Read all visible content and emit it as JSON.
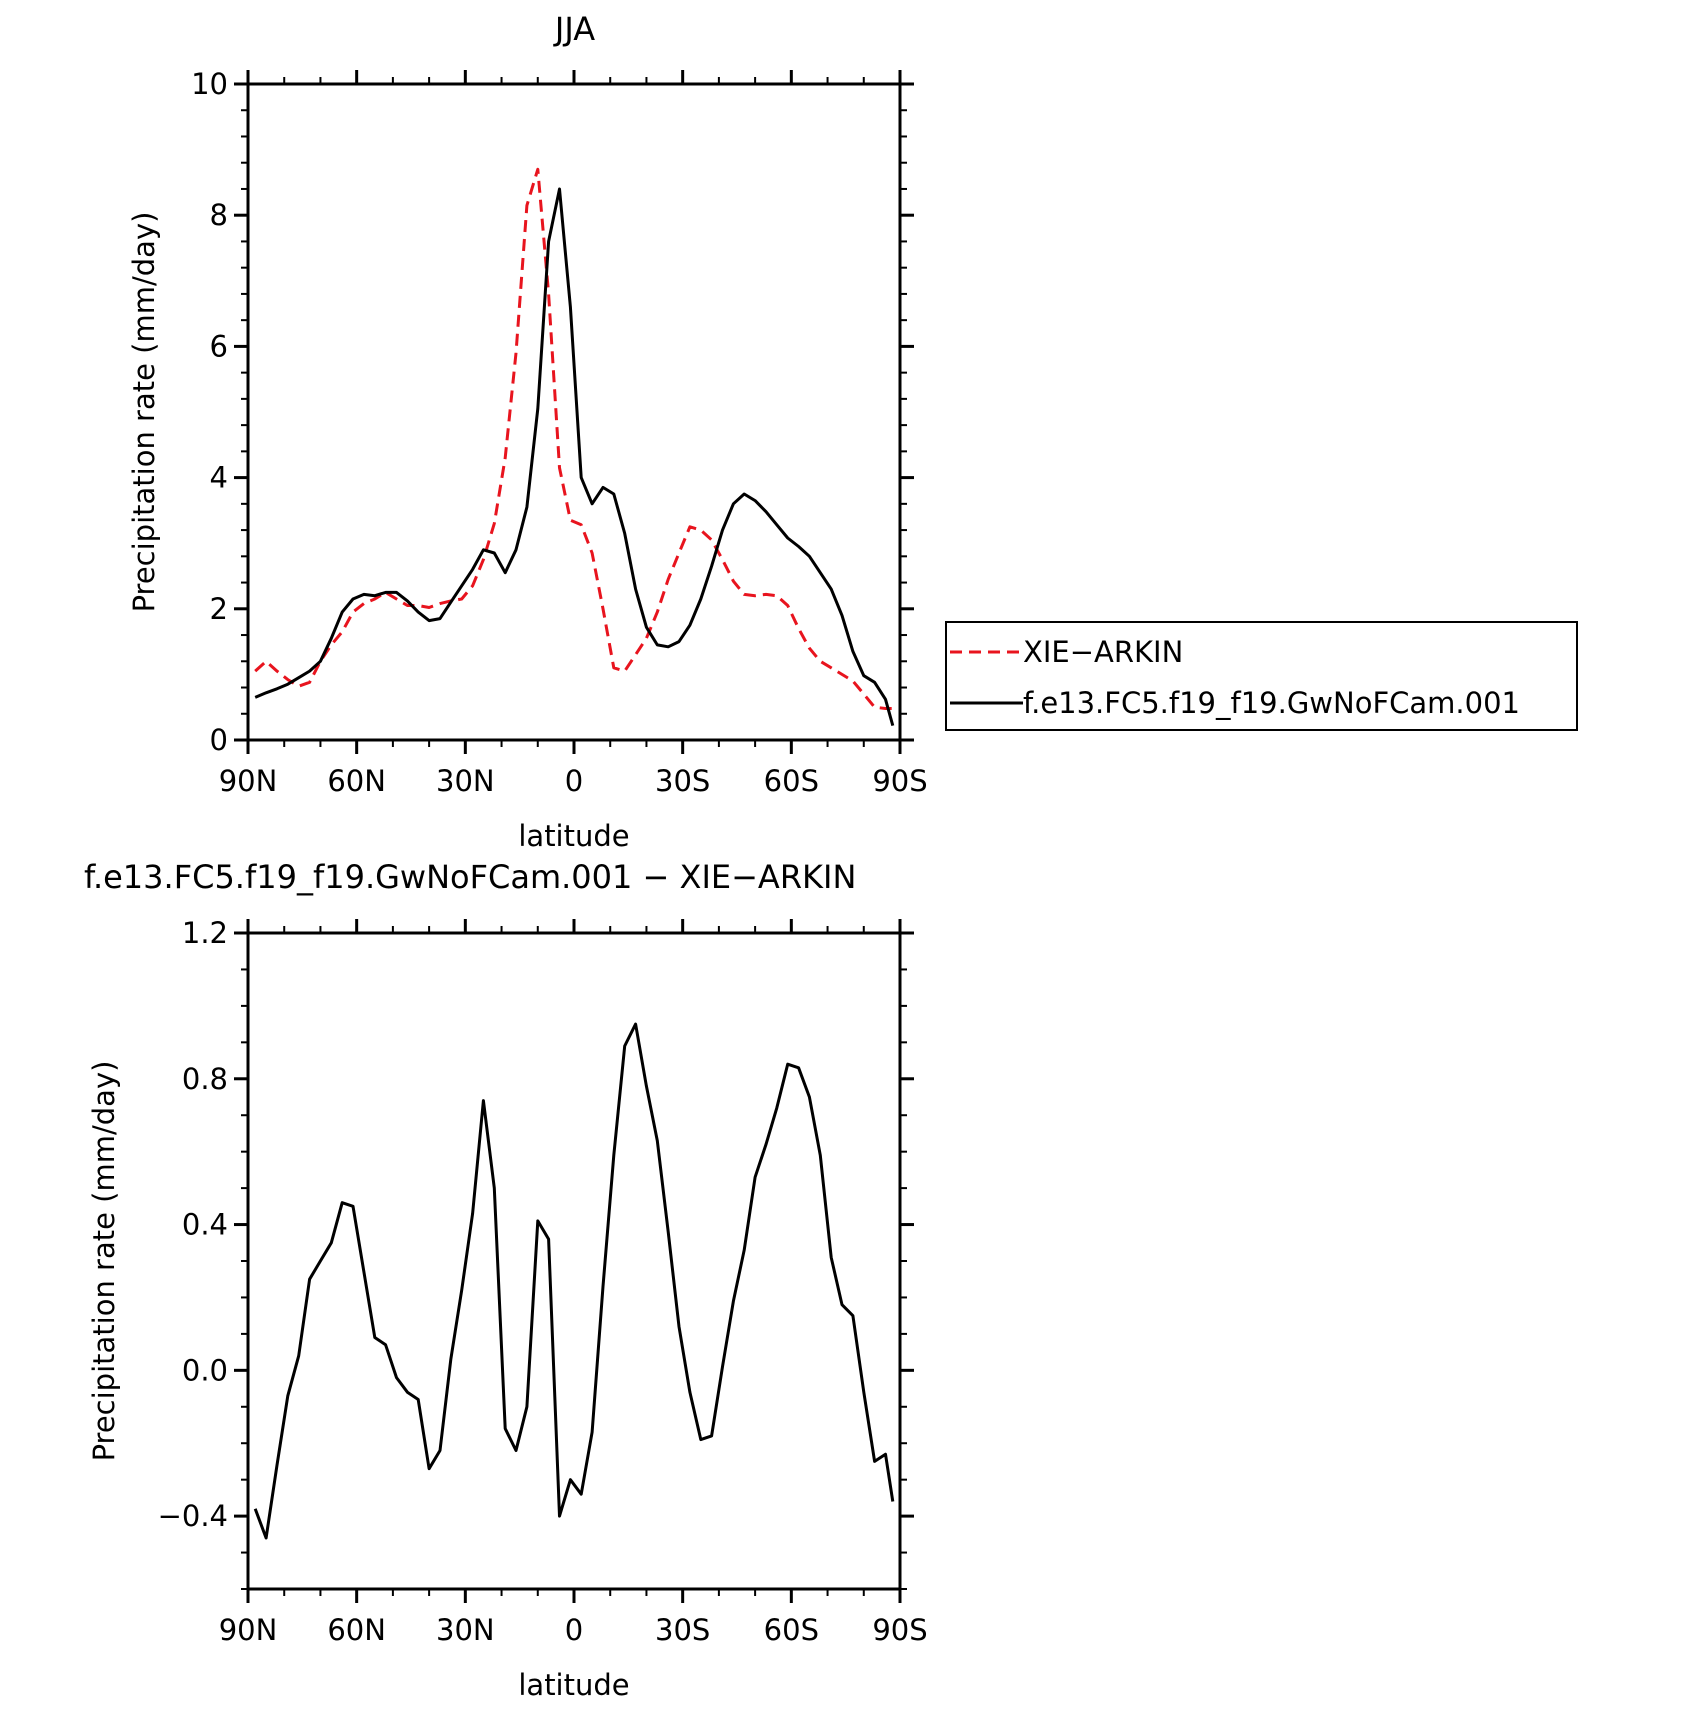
{
  "chart_data": [
    {
      "type": "line",
      "title": "JJA",
      "xlabel": "latitude",
      "ylabel": "Precipitation rate (mm/day)",
      "xlim": [
        90,
        -90
      ],
      "ylim": [
        0,
        10
      ],
      "x_ticks": [
        90,
        60,
        30,
        0,
        -30,
        -60,
        -90
      ],
      "x_tick_labels": [
        "90N",
        "60N",
        "30N",
        "0",
        "30S",
        "60S",
        "90S"
      ],
      "y_ticks": [
        0,
        2,
        4,
        6,
        8,
        10
      ],
      "y_tick_labels": [
        "0",
        "2",
        "4",
        "6",
        "8",
        "10"
      ],
      "grid": false,
      "legend_position": "right",
      "series": [
        {
          "name": "XIE−ARKIN",
          "color": "#e8141e",
          "dash": "dashed",
          "x": [
            88,
            85,
            82,
            79,
            76,
            73,
            70,
            67,
            64,
            61,
            58,
            55,
            52,
            49,
            46,
            43,
            40,
            37,
            34,
            31,
            28,
            25,
            22,
            19,
            16,
            13,
            10,
            7,
            4,
            1,
            -2,
            -5,
            -8,
            -11,
            -14,
            -17,
            -20,
            -23,
            -26,
            -29,
            -32,
            -35,
            -38,
            -41,
            -44,
            -47,
            -50,
            -53,
            -56,
            -59,
            -62,
            -65,
            -68,
            -71,
            -74,
            -77,
            -80,
            -83,
            -86,
            -88
          ],
          "y": [
            1.05,
            1.2,
            1.05,
            0.92,
            0.82,
            0.88,
            1.2,
            1.45,
            1.65,
            1.95,
            2.08,
            2.15,
            2.25,
            2.15,
            2.05,
            2.05,
            2.02,
            2.08,
            2.12,
            2.15,
            2.35,
            2.75,
            3.3,
            4.3,
            5.9,
            8.15,
            8.7,
            6.8,
            4.15,
            3.35,
            3.28,
            2.85,
            2.0,
            1.1,
            1.05,
            1.3,
            1.55,
            1.95,
            2.45,
            2.85,
            3.25,
            3.2,
            3.05,
            2.75,
            2.42,
            2.22,
            2.2,
            2.22,
            2.2,
            2.05,
            1.7,
            1.4,
            1.2,
            1.1,
            1.0,
            0.9,
            0.7,
            0.5,
            0.48,
            0.48
          ]
        },
        {
          "name": "f.e13.FC5.f19_f19.GwNoFCam.001",
          "color": "#000000",
          "dash": "solid",
          "x": [
            88,
            85,
            82,
            79,
            76,
            73,
            70,
            67,
            64,
            61,
            58,
            55,
            52,
            49,
            46,
            43,
            40,
            37,
            34,
            31,
            28,
            25,
            22,
            19,
            16,
            13,
            10,
            7,
            4,
            1,
            -2,
            -5,
            -8,
            -11,
            -14,
            -17,
            -20,
            -23,
            -26,
            -29,
            -32,
            -35,
            -38,
            -41,
            -44,
            -47,
            -50,
            -53,
            -56,
            -59,
            -62,
            -65,
            -68,
            -71,
            -74,
            -77,
            -80,
            -83,
            -86,
            -88
          ],
          "y": [
            0.65,
            0.72,
            0.78,
            0.85,
            0.95,
            1.05,
            1.2,
            1.55,
            1.95,
            2.15,
            2.22,
            2.2,
            2.25,
            2.25,
            2.12,
            1.95,
            1.82,
            1.85,
            2.1,
            2.35,
            2.6,
            2.9,
            2.85,
            2.55,
            2.9,
            3.55,
            5.05,
            7.6,
            8.4,
            6.6,
            4.0,
            3.6,
            3.85,
            3.75,
            3.15,
            2.3,
            1.72,
            1.45,
            1.42,
            1.5,
            1.75,
            2.15,
            2.65,
            3.2,
            3.6,
            3.75,
            3.65,
            3.48,
            3.28,
            3.08,
            2.95,
            2.8,
            2.55,
            2.3,
            1.9,
            1.35,
            0.98,
            0.88,
            0.62,
            0.22
          ]
        }
      ]
    },
    {
      "type": "line",
      "title": "f.e13.FC5.f19_f19.GwNoFCam.001 − XIE−ARKIN",
      "xlabel": "latitude",
      "ylabel": "Precipitation rate (mm/day)",
      "xlim": [
        90,
        -90
      ],
      "ylim": [
        -0.6,
        1.2
      ],
      "x_ticks": [
        90,
        60,
        30,
        0,
        -30,
        -60,
        -90
      ],
      "x_tick_labels": [
        "90N",
        "60N",
        "30N",
        "0",
        "30S",
        "60S",
        "90S"
      ],
      "y_ticks": [
        -0.4,
        0.0,
        0.4,
        0.8,
        1.2
      ],
      "y_tick_labels": [
        "−0.4",
        "0.0",
        "0.4",
        "0.8",
        "1.2"
      ],
      "grid": false,
      "series": [
        {
          "name": "",
          "color": "#000000",
          "dash": "solid",
          "x": [
            88,
            85,
            82,
            79,
            76,
            73,
            70,
            67,
            64,
            61,
            58,
            55,
            52,
            49,
            46,
            43,
            40,
            37,
            34,
            31,
            28,
            25,
            22,
            19,
            16,
            13,
            10,
            7,
            4,
            1,
            -2,
            -5,
            -8,
            -11,
            -14,
            -17,
            -20,
            -23,
            -26,
            -29,
            -32,
            -35,
            -38,
            -41,
            -44,
            -47,
            -50,
            -53,
            -56,
            -59,
            -62,
            -65,
            -68,
            -71,
            -74,
            -77,
            -80,
            -83,
            -86,
            -88
          ],
          "y": [
            -0.38,
            -0.46,
            -0.26,
            -0.07,
            0.04,
            0.25,
            0.3,
            0.35,
            0.46,
            0.45,
            0.27,
            0.09,
            0.07,
            -0.02,
            -0.06,
            -0.08,
            -0.27,
            -0.22,
            0.03,
            0.22,
            0.43,
            0.74,
            0.5,
            -0.16,
            -0.22,
            -0.1,
            0.41,
            0.36,
            -0.4,
            -0.3,
            -0.34,
            -0.17,
            0.23,
            0.59,
            0.89,
            0.95,
            0.78,
            0.63,
            0.38,
            0.12,
            -0.06,
            -0.19,
            -0.18,
            0.01,
            0.19,
            0.33,
            0.53,
            0.62,
            0.72,
            0.84,
            0.83,
            0.75,
            0.59,
            0.31,
            0.18,
            0.15,
            -0.06,
            -0.25,
            -0.23,
            -0.36
          ]
        }
      ]
    }
  ]
}
